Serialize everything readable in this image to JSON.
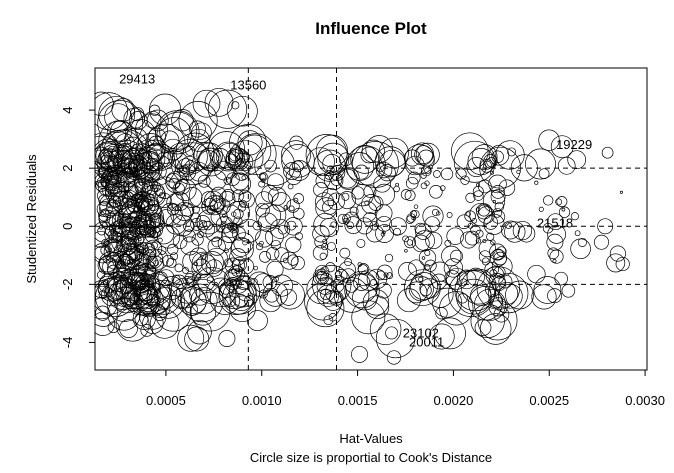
{
  "chart_data": {
    "type": "scatter",
    "title": "Influence Plot",
    "xlabel": "Hat-Values",
    "ylabel": "Studentized Residuals",
    "subtitle": "Circle size is proportial to Cook's Distance",
    "xlim": [
      0.00013,
      0.00301
    ],
    "ylim": [
      -4.95,
      5.45
    ],
    "x_ticks": [
      0.0005,
      0.001,
      0.0015,
      0.002,
      0.0025,
      0.003
    ],
    "x_tick_labels": [
      "0.0005",
      "0.0010",
      "0.0015",
      "0.0020",
      "0.0025",
      "0.0030"
    ],
    "y_ticks": [
      -4,
      -2,
      0,
      2,
      4
    ],
    "y_tick_labels": [
      "-4",
      "-2",
      "0",
      "2",
      "4"
    ],
    "reference_lines": {
      "horizontal": [
        -2,
        0,
        2
      ],
      "vertical": [
        0.00093,
        0.00139
      ]
    },
    "labeled_points": [
      {
        "id": "29413",
        "x": 0.00035,
        "y": 5.05
      },
      {
        "id": "13560",
        "x": 0.00093,
        "y": 4.85
      },
      {
        "id": "19229",
        "x": 0.00263,
        "y": 2.8
      },
      {
        "id": "21518",
        "x": 0.00253,
        "y": 0.1
      },
      {
        "id": "23102",
        "x": 0.00183,
        "y": -3.7
      },
      {
        "id": "20011",
        "x": 0.00186,
        "y": -4.0
      }
    ],
    "point_clusters": [
      {
        "x_range": [
          0.00016,
          0.00045
        ],
        "y_range": [
          -3.6,
          4.3
        ],
        "count": 420
      },
      {
        "x_range": [
          0.00045,
          0.00092
        ],
        "y_range": [
          -3.9,
          4.4
        ],
        "count": 240
      },
      {
        "x_range": [
          0.00092,
          0.0012
        ],
        "y_range": [
          -3.4,
          2.9
        ],
        "count": 70
      },
      {
        "x_range": [
          0.0013,
          0.00145
        ],
        "y_range": [
          -3.4,
          2.9
        ],
        "count": 60
      },
      {
        "x_range": [
          0.00145,
          0.00172
        ],
        "y_range": [
          -4.6,
          3.0
        ],
        "count": 70
      },
      {
        "x_range": [
          0.00175,
          0.00188
        ],
        "y_range": [
          -3.0,
          2.8
        ],
        "count": 45
      },
      {
        "x_range": [
          0.00188,
          0.00208
        ],
        "y_range": [
          -4.0,
          1.8
        ],
        "count": 35
      },
      {
        "x_range": [
          0.00208,
          0.00224
        ],
        "y_range": [
          -3.6,
          3.3
        ],
        "count": 70
      },
      {
        "x_range": [
          0.00224,
          0.00262
        ],
        "y_range": [
          -3.4,
          3.2
        ],
        "count": 45
      },
      {
        "x_range": [
          0.00262,
          0.0029
        ],
        "y_range": [
          -1.3,
          3.2
        ],
        "count": 12
      }
    ],
    "grid": false,
    "legend": "none"
  }
}
